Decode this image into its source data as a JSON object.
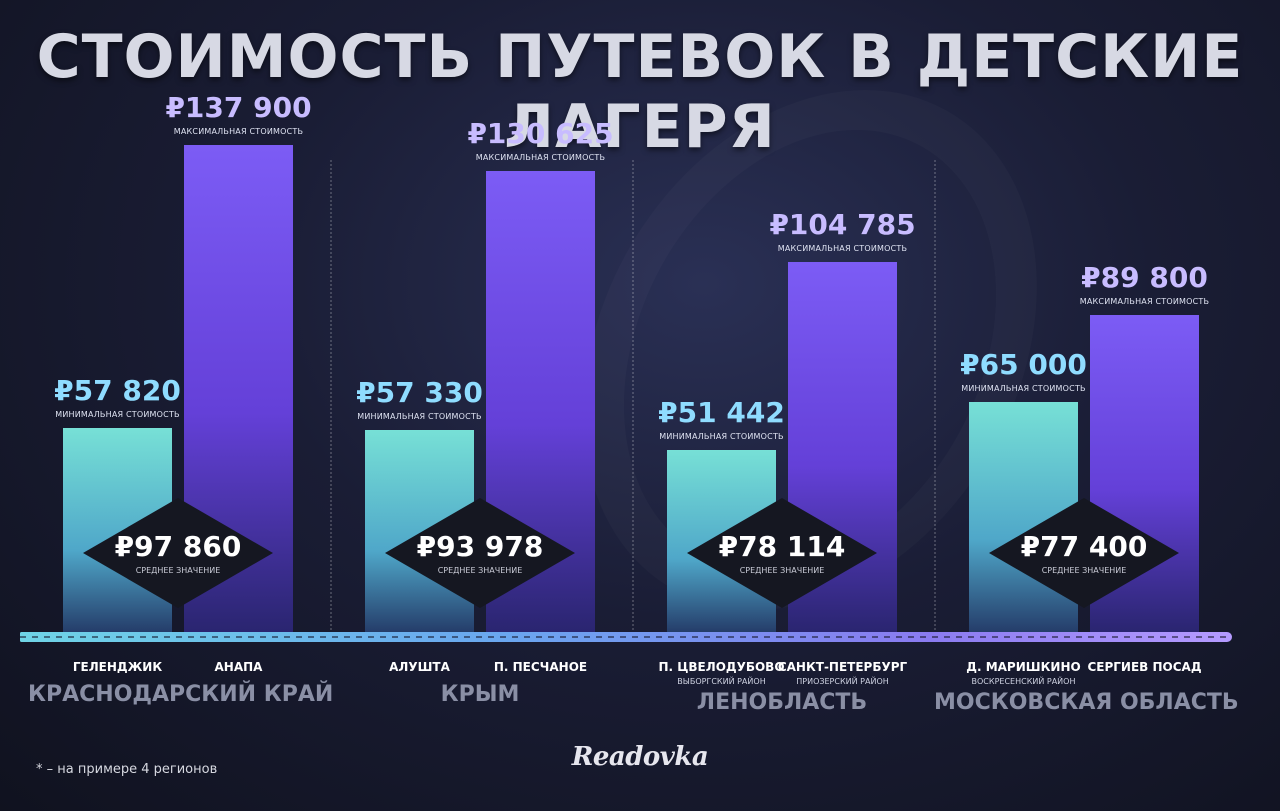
{
  "title": "СТОИМОСТЬ ПУТЕВОК В ДЕТСКИЕ ЛАГЕРЯ",
  "footnote": "* – на примере 4 регионов",
  "logo": "Readovka",
  "labels": {
    "min": "МИНИМАЛЬНАЯ СТОИМОСТЬ",
    "max": "МАКСИМАЛЬНАЯ СТОИМОСТЬ",
    "avg": "СРЕДНЕЕ ЗНАЧЕНИЕ"
  },
  "colors": {
    "min_bar": "#5bc6d2",
    "max_bar": "#6c48e0",
    "min_value": "#8fdcff",
    "max_value": "#c8bcff",
    "background": "#1a1d35"
  },
  "chart_data": {
    "type": "bar",
    "currency": "₽",
    "ylim": [
      0,
      145000
    ],
    "grid": false,
    "series": [
      {
        "name": "МИНИМАЛЬНАЯ СТОИМОСТЬ",
        "values": [
          57820,
          57330,
          51442,
          65000
        ]
      },
      {
        "name": "МАКСИМАЛЬНАЯ СТОИМОСТЬ",
        "values": [
          137900,
          130625,
          104785,
          89800
        ]
      },
      {
        "name": "СРЕДНЕЕ ЗНАЧЕНИЕ",
        "values": [
          97860,
          93978,
          78114,
          77400
        ]
      }
    ],
    "groups": [
      {
        "region": "КРАСНОДАРСКИЙ КРАЙ",
        "min": {
          "value": 57820,
          "label": "₽57 820",
          "city": "ГЕЛЕНДЖИК",
          "district": ""
        },
        "max": {
          "value": 137900,
          "label": "₽137 900",
          "city": "АНАПА",
          "district": ""
        },
        "avg": {
          "value": 97860,
          "label": "₽97 860"
        }
      },
      {
        "region": "КРЫМ",
        "min": {
          "value": 57330,
          "label": "₽57 330",
          "city": "АЛУШТА",
          "district": ""
        },
        "max": {
          "value": 130625,
          "label": "₽130 625",
          "city": "П. ПЕСЧАНОЕ",
          "district": ""
        },
        "avg": {
          "value": 93978,
          "label": "₽93 978"
        }
      },
      {
        "region": "ЛЕНОБЛАСТЬ",
        "min": {
          "value": 51442,
          "label": "₽51 442",
          "city": "П. ЦВЕЛОДУБОВО",
          "district": "ВЫБОРГСКИЙ РАЙОН"
        },
        "max": {
          "value": 104785,
          "label": "₽104 785",
          "city": "САНКТ-ПЕТЕРБУРГ",
          "district": "ПРИОЗЕРСКИЙ РАЙОН"
        },
        "avg": {
          "value": 78114,
          "label": "₽78 114"
        }
      },
      {
        "region": "МОСКОВСКАЯ ОБЛАСТЬ",
        "min": {
          "value": 65000,
          "label": "₽65 000",
          "city": "Д. МАРИШКИНО",
          "district": "ВОСКРЕСЕНСКИЙ РАЙОН"
        },
        "max": {
          "value": 89800,
          "label": "₽89 800",
          "city": "СЕРГИЕВ ПОСАД",
          "district": ""
        },
        "avg": {
          "value": 77400,
          "label": "₽77 400"
        }
      }
    ]
  }
}
